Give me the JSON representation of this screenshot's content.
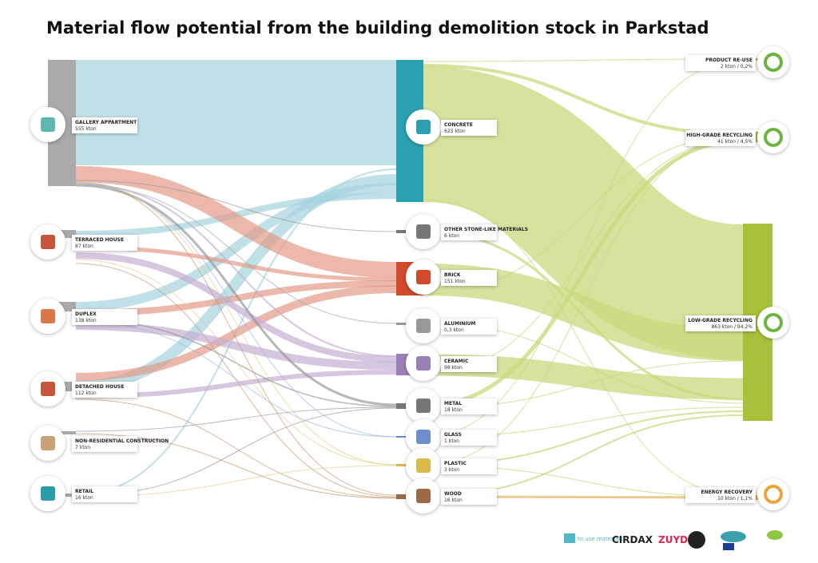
{
  "title": "Material flow potential from the building demolition stock in Parkstad",
  "sources": [
    {
      "label": "GALLERY APPARTMENT",
      "value": "555 kton"
    },
    {
      "label": "TERRACED HOUSE",
      "value": "87 kton"
    },
    {
      "label": "DUPLEX",
      "value": "138 kton"
    },
    {
      "label": "DETACHED HOUSE",
      "value": "112 kton"
    },
    {
      "label": "NON-RESIDENTIAL CONSTRUCTION",
      "value": "7 kton"
    },
    {
      "label": "RETAIL",
      "value": "16 kton"
    }
  ],
  "materials": [
    {
      "label": "CONCRETE",
      "value": "623 kton"
    },
    {
      "label": "OTHER STONE-LIKE MATERIALS",
      "value": "6 kton"
    },
    {
      "label": "BRICK",
      "value": "151 kton"
    },
    {
      "label": "ALUMINIUM",
      "value": "0,3 kton"
    },
    {
      "label": "CERAMIC",
      "value": "98 kton"
    },
    {
      "label": "METAL",
      "value": "18 kton"
    },
    {
      "label": "GLASS",
      "value": "1 kton"
    },
    {
      "label": "PLASTIC",
      "value": "3 kton"
    },
    {
      "label": "WOOD",
      "value": "16 kton"
    }
  ],
  "destinations": [
    {
      "label": "PRODUCT RE-USE",
      "value": "2 kton / 0,2%"
    },
    {
      "label": "HIGH-GRADE RECYCLING",
      "value": "41 kton / 4,5%"
    },
    {
      "label": "LOW-GRADE RECYCLING",
      "value": "863 kton / 94,2%"
    },
    {
      "label": "ENERGY RECOVERY",
      "value": "10 kton / 1,1%"
    }
  ],
  "logos": [
    "to use materials",
    "CIRDAX",
    "ZUYD"
  ]
}
